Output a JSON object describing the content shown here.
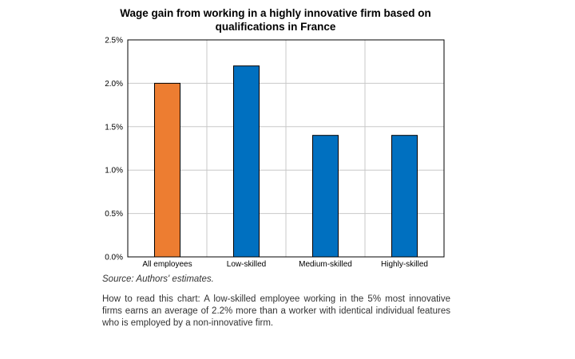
{
  "chart_data": {
    "type": "bar",
    "title": "Wage gain from working in a highly innovative firm based on qualifications in France",
    "categories": [
      "All employees",
      "Low-skilled",
      "Medium-skilled",
      "Highly-skilled"
    ],
    "values": [
      2.0,
      2.2,
      1.4,
      1.4
    ],
    "colors": [
      "#ED7D31",
      "#0070C0",
      "#0070C0",
      "#0070C0"
    ],
    "ylim": [
      0,
      2.5
    ],
    "yticks": [
      "0.0%",
      "0.5%",
      "1.0%",
      "1.5%",
      "2.0%",
      "2.5%"
    ],
    "ytick_values": [
      0,
      0.5,
      1.0,
      1.5,
      2.0,
      2.5
    ],
    "xlabel": "",
    "ylabel": "",
    "grid": true,
    "legend": "none"
  },
  "source": "Source: Authors' estimates.",
  "note": "How to read this chart: A low-skilled employee working in the 5% most innovative firms earns an average of 2.2% more than a worker with identical individual features who is employed by a non-innovative firm."
}
